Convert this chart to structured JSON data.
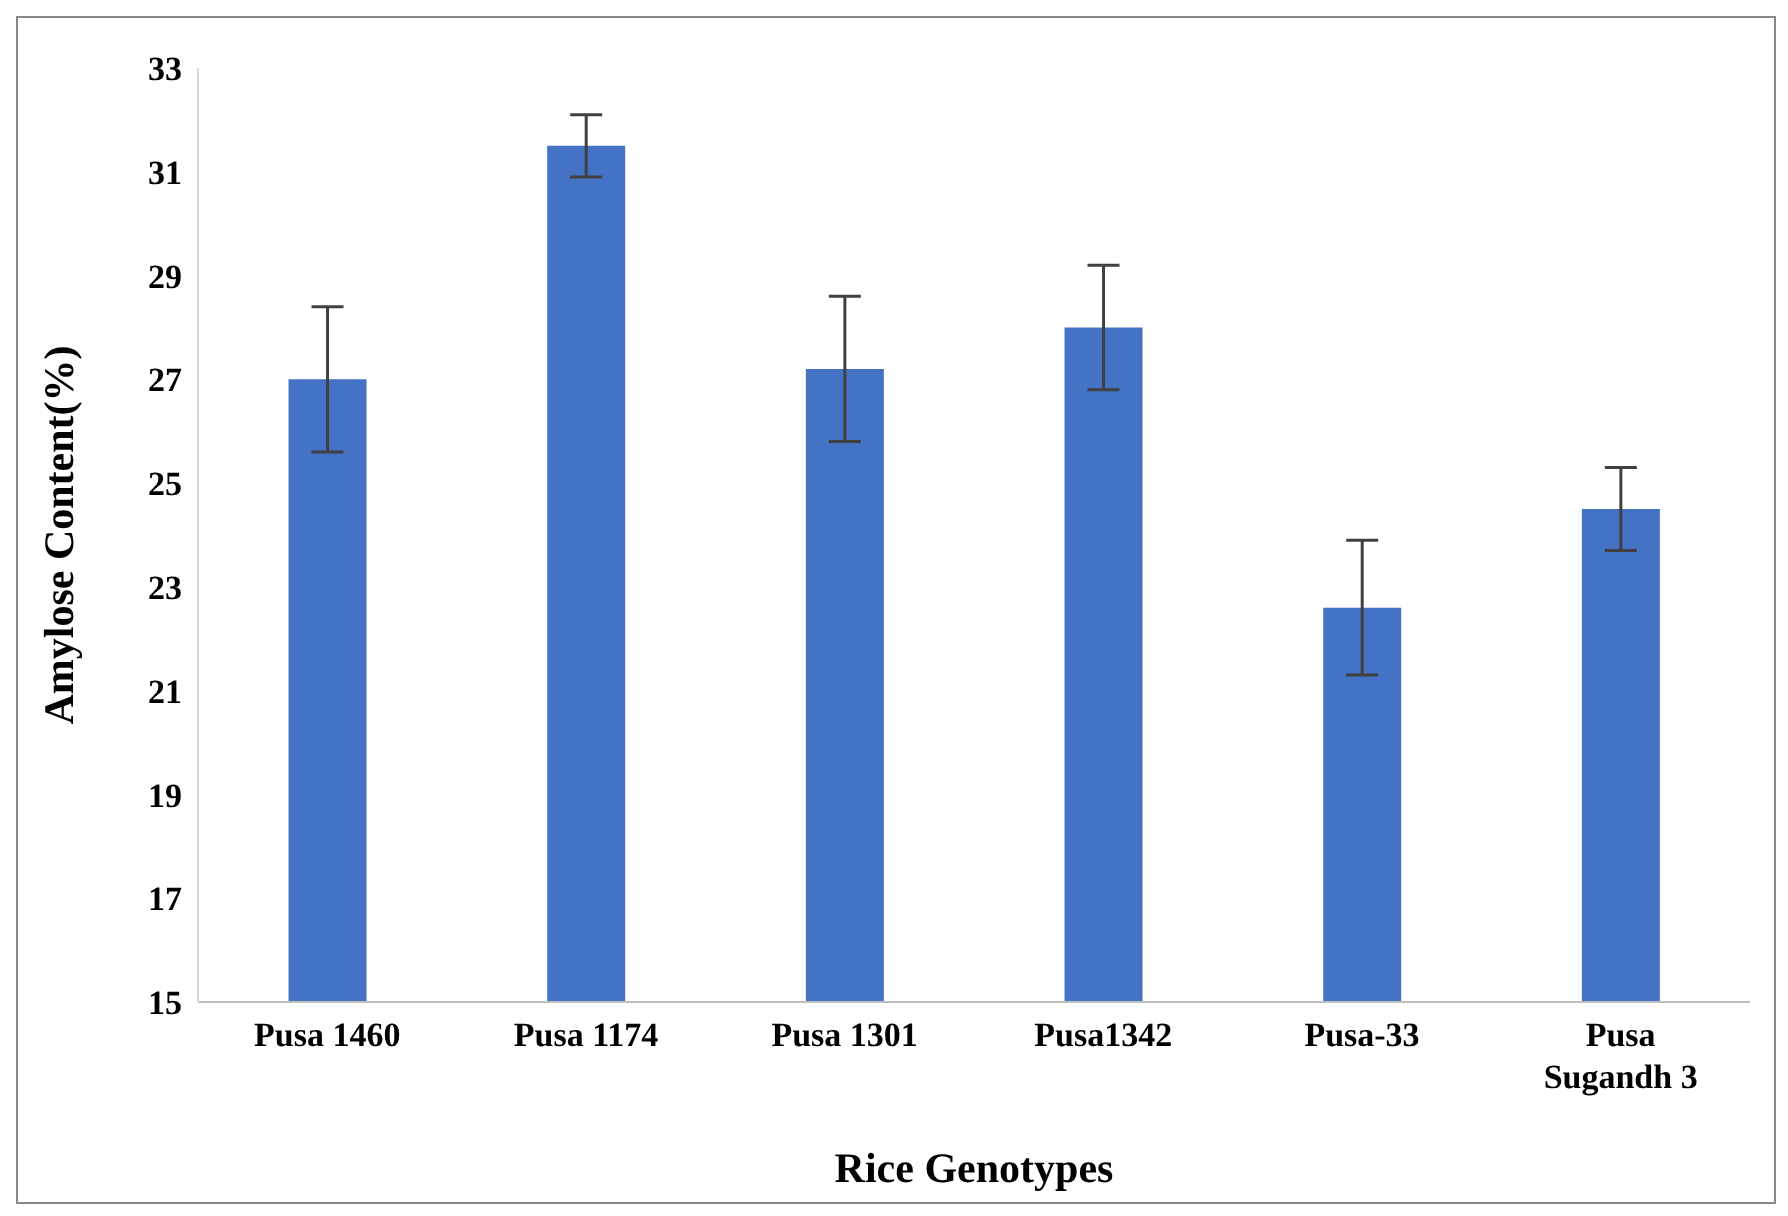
{
  "chart_data": {
    "type": "bar",
    "xlabel": "Rice Genotypes",
    "ylabel": "Amylose Content(%)",
    "categories": [
      "Pusa 1460",
      "Pusa 1174",
      "Pusa 1301",
      "Pusa1342",
      "Pusa-33",
      "Pusa Sugandh 3"
    ],
    "values": [
      27.0,
      31.5,
      27.2,
      28.0,
      22.6,
      24.5
    ],
    "errors": [
      1.4,
      0.6,
      1.4,
      1.2,
      1.3,
      0.8
    ],
    "color": "#4472c4",
    "ylim": [
      15,
      33
    ],
    "yticks": [
      15,
      17,
      19,
      21,
      23,
      25,
      27,
      29,
      31,
      33
    ],
    "grid": false,
    "legend": false
  }
}
